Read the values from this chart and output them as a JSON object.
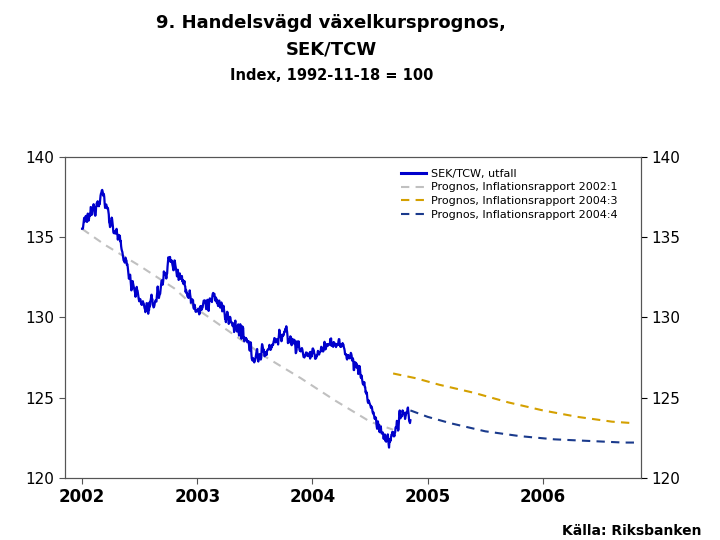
{
  "title_line1": "9. Handelsvägd växelkursprognos,",
  "title_line2": "SEK/TCW",
  "subtitle": "Index, 1992-11-18 = 100",
  "ylim": [
    120,
    140
  ],
  "yticks": [
    120,
    125,
    130,
    135,
    140
  ],
  "xlim_start": 2001.85,
  "xlim_end": 2006.85,
  "xtick_labels": [
    "2002",
    "2003",
    "2004",
    "2005",
    "2006"
  ],
  "xtick_positions": [
    2002,
    2003,
    2004,
    2005,
    2006
  ],
  "source_text": "Källa: Riksbanken",
  "background_color": "#ffffff",
  "plot_bg_color": "#ffffff",
  "footer_color": "#1a3a8c",
  "riksbank_logo_color": "#1a4080",
  "legend_items": [
    {
      "label": "SEK/TCW, utfall",
      "color": "#0000cc",
      "linestyle": "solid"
    },
    {
      "label": "Prognos, Inflationsrapport 2002:1",
      "color": "#c0c0c0",
      "linestyle": "dashed"
    },
    {
      "label": "Prognos, Inflationsrapport 2004:3",
      "color": "#d4a000",
      "linestyle": "dashed"
    },
    {
      "label": "Prognos, Inflationsrapport 2004:4",
      "color": "#1a3a8c",
      "linestyle": "dashed"
    }
  ],
  "prog2002_x": [
    2002.0,
    2002.2,
    2002.5,
    2002.8,
    2003.0,
    2003.3,
    2003.6,
    2003.9,
    2004.2,
    2004.5,
    2004.7
  ],
  "prog2002_y": [
    135.5,
    134.5,
    133.2,
    131.8,
    130.5,
    129.0,
    127.5,
    126.2,
    124.8,
    123.5,
    123.0
  ],
  "prog2004_3_x": [
    2004.7,
    2004.9,
    2005.1,
    2005.4,
    2005.7,
    2006.0,
    2006.3,
    2006.6,
    2006.8
  ],
  "prog2004_3_y": [
    126.5,
    126.2,
    125.8,
    125.3,
    124.7,
    124.2,
    123.8,
    123.5,
    123.4
  ],
  "prog2004_4_x": [
    2004.85,
    2005.0,
    2005.2,
    2005.5,
    2005.8,
    2006.1,
    2006.4,
    2006.7,
    2006.8
  ],
  "prog2004_4_y": [
    124.2,
    123.8,
    123.4,
    122.9,
    122.6,
    122.4,
    122.3,
    122.2,
    122.2
  ]
}
